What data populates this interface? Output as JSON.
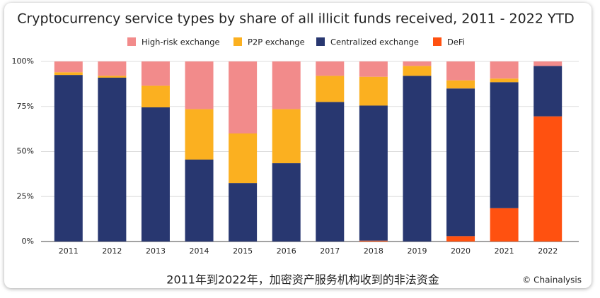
{
  "chart_data": {
    "type": "stacked_bar",
    "title": "Cryptocurrency service types by share of all illicit funds received, 2011 - 2022 YTD",
    "caption": "2011年到2022年，加密资产服务机构收到的非法资金",
    "source": "© Chainalysis",
    "categories": [
      "2011",
      "2012",
      "2013",
      "2014",
      "2015",
      "2016",
      "2017",
      "2018",
      "2019",
      "2020",
      "2021",
      "2022"
    ],
    "series": [
      {
        "name": "High-risk exchange",
        "color": "#f28b8b",
        "values": [
          6,
          8,
          13.5,
          26.5,
          40,
          26.5,
          8,
          8.5,
          2.5,
          10.5,
          9.5,
          2.5
        ]
      },
      {
        "name": "P2P exchange",
        "color": "#fbb020",
        "values": [
          1.5,
          1,
          12,
          28,
          27.5,
          30,
          14.5,
          16,
          5.5,
          4.5,
          2,
          0
        ]
      },
      {
        "name": "Centralized exchange",
        "color": "#283770",
        "values": [
          92.5,
          91,
          74.5,
          45.5,
          32.5,
          43.5,
          77.5,
          75,
          92,
          82,
          70,
          28
        ]
      },
      {
        "name": "DeFi",
        "color": "#ff5110",
        "values": [
          0,
          0,
          0,
          0,
          0,
          0,
          0,
          0.5,
          0,
          3,
          18.5,
          69.5
        ]
      }
    ],
    "ylim": [
      0,
      100
    ],
    "yticks": [
      {
        "value": 0,
        "label": "0%"
      },
      {
        "value": 25,
        "label": "25%"
      },
      {
        "value": 50,
        "label": "50%"
      },
      {
        "value": 75,
        "label": "75%"
      },
      {
        "value": 100,
        "label": "100%"
      }
    ],
    "grid": true
  }
}
